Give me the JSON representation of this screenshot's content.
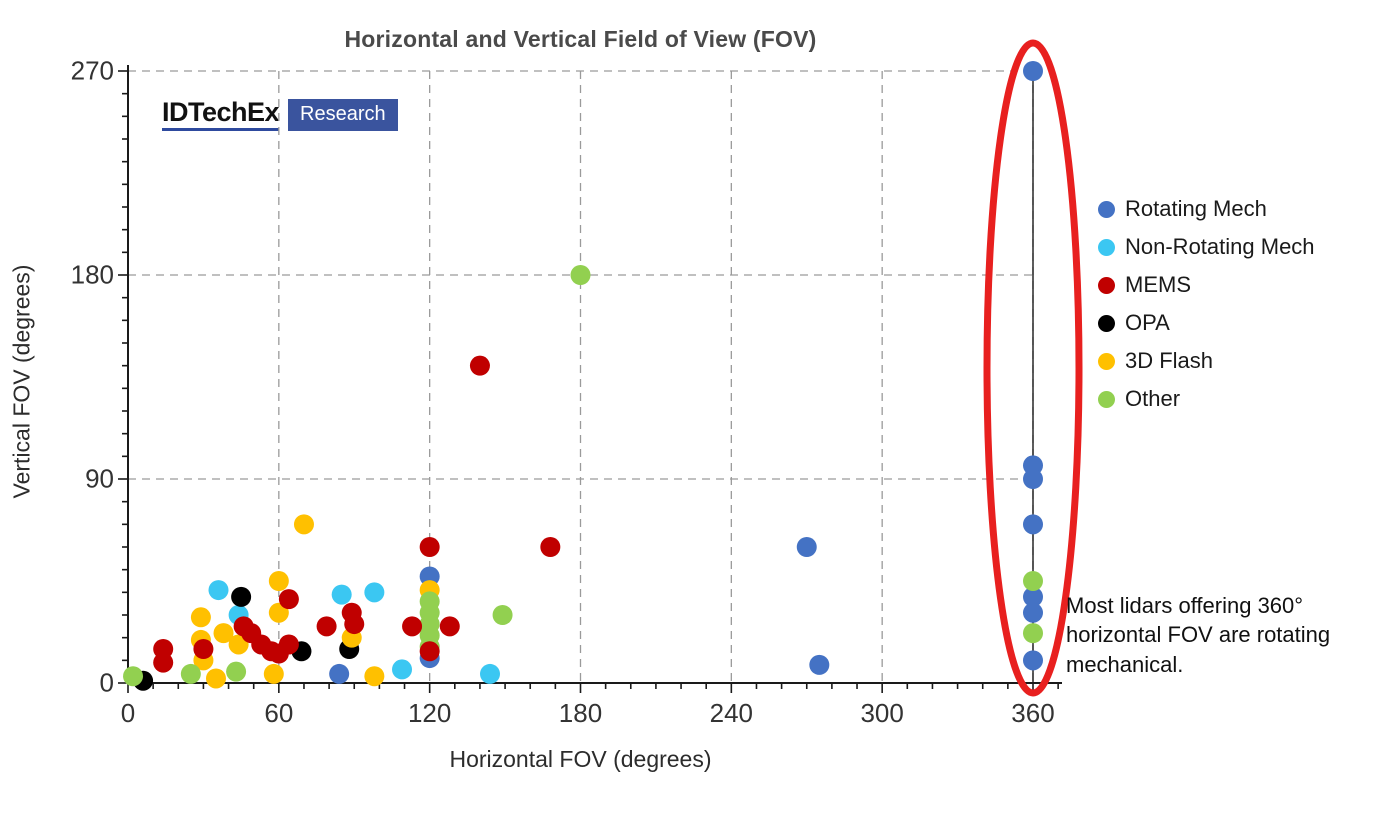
{
  "chart_data": {
    "type": "scatter",
    "title": "Horizontal and Vertical Field of View (FOV)",
    "xlabel": "Horizontal FOV (degrees)",
    "ylabel": "Vertical FOV (degrees)",
    "xlim": [
      0,
      360
    ],
    "ylim": [
      0,
      270
    ],
    "x_major_ticks": [
      0,
      60,
      120,
      180,
      240,
      300,
      360
    ],
    "y_major_ticks": [
      0,
      90,
      180,
      270
    ],
    "minor_tick_step_deg": 10,
    "grid": "dashed gray at every major tick",
    "legend_position": "right",
    "series": [
      {
        "name": "Rotating Mech",
        "color": "#4472C4",
        "points": [
          [
            360,
            270
          ],
          [
            360,
            96
          ],
          [
            360,
            90
          ],
          [
            360,
            70
          ],
          [
            360,
            38
          ],
          [
            360,
            31
          ],
          [
            360,
            10
          ],
          [
            275,
            8
          ],
          [
            270,
            60
          ],
          [
            120,
            47
          ],
          [
            120,
            11
          ],
          [
            84,
            4
          ]
        ]
      },
      {
        "name": "Non-Rotating Mech",
        "color": "#3BC7F2",
        "points": [
          [
            36,
            41
          ],
          [
            44,
            30
          ],
          [
            85,
            39
          ],
          [
            98,
            40
          ],
          [
            109,
            6
          ],
          [
            144,
            4
          ]
        ]
      },
      {
        "name": "MEMS",
        "color": "#C00000",
        "points": [
          [
            14,
            15
          ],
          [
            14,
            9
          ],
          [
            30,
            15
          ],
          [
            46,
            25
          ],
          [
            49,
            22
          ],
          [
            53,
            17
          ],
          [
            57,
            14
          ],
          [
            60,
            13
          ],
          [
            64,
            17
          ],
          [
            64,
            37
          ],
          [
            79,
            25
          ],
          [
            89,
            31
          ],
          [
            90,
            26
          ],
          [
            113,
            25
          ],
          [
            120,
            14
          ],
          [
            128,
            25
          ],
          [
            120,
            60
          ],
          [
            168,
            60
          ],
          [
            140,
            140
          ]
        ]
      },
      {
        "name": "OPA",
        "color": "#000000",
        "points": [
          [
            6,
            1
          ],
          [
            45,
            38
          ],
          [
            69,
            14
          ],
          [
            88,
            15
          ]
        ]
      },
      {
        "name": "3D Flash",
        "color": "#FFC000",
        "points": [
          [
            29,
            29
          ],
          [
            29,
            19
          ],
          [
            30,
            10
          ],
          [
            35,
            2
          ],
          [
            38,
            22
          ],
          [
            44,
            17
          ],
          [
            58,
            4
          ],
          [
            60,
            45
          ],
          [
            60,
            31
          ],
          [
            70,
            70
          ],
          [
            89,
            20
          ],
          [
            98,
            3
          ],
          [
            120,
            41
          ]
        ]
      },
      {
        "name": "Other",
        "color": "#92D050",
        "points": [
          [
            2,
            3
          ],
          [
            25,
            4
          ],
          [
            43,
            5
          ],
          [
            120,
            36
          ],
          [
            120,
            31
          ],
          [
            120,
            26
          ],
          [
            120,
            21
          ],
          [
            120,
            16
          ],
          [
            149,
            30
          ],
          [
            180,
            180
          ],
          [
            360,
            45
          ],
          [
            360,
            22
          ]
        ]
      }
    ],
    "annotation": {
      "text": "Most lidars offering 360° horizontal FOV are rotating mechanical.",
      "highlight_ellipse_at_x": 360,
      "highlight_color": "#E8201F",
      "connector_line_x": 360
    }
  },
  "logo": {
    "brand": "IDTechEx",
    "badge": "Research"
  },
  "colors": {
    "grid": "#9a9a9a",
    "axis": "#1a1a1a",
    "title_text": "#4a4a4a",
    "tick_text": "#333333",
    "annotation_text": "#111111",
    "logo_badge_bg": "#3A549E"
  }
}
